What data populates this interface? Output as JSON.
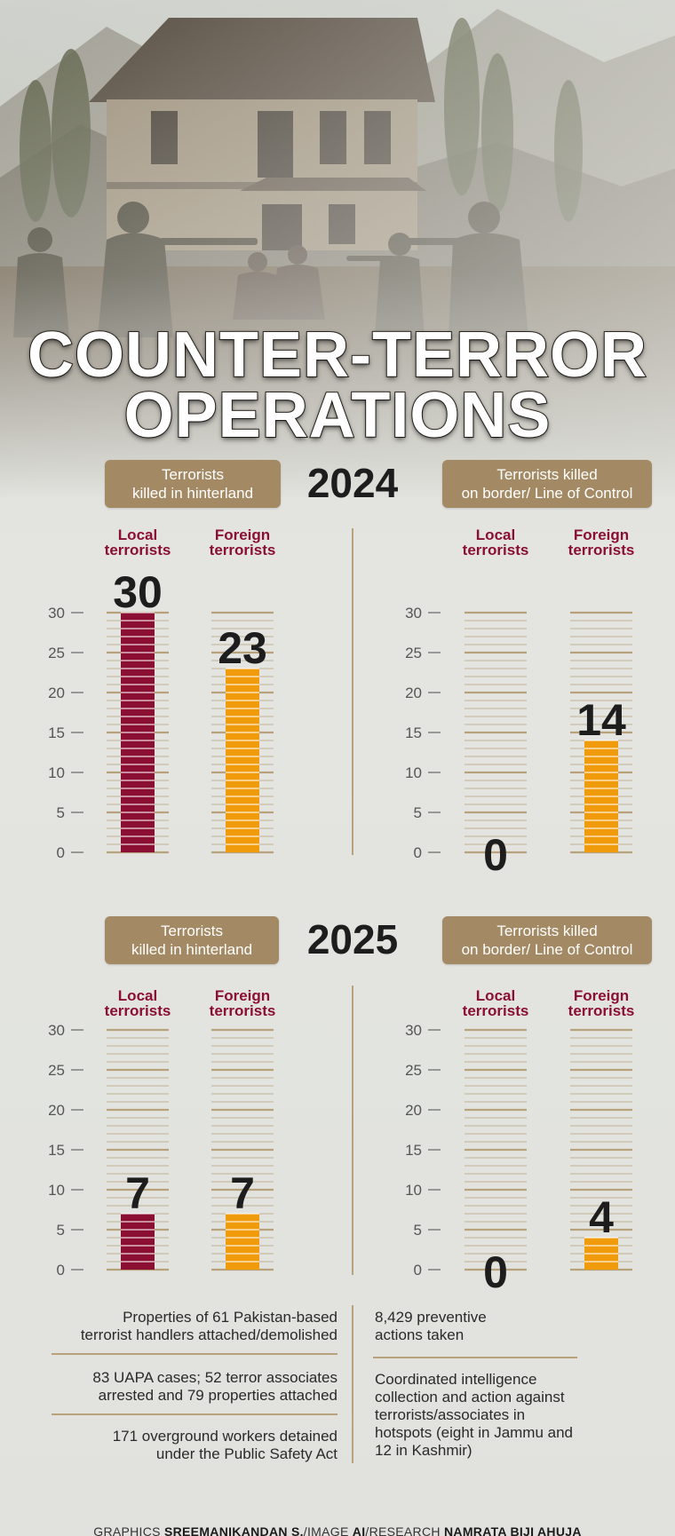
{
  "title": {
    "line1": "COUNTER-TERROR",
    "line2": "OPERATIONS"
  },
  "colors": {
    "local": "#8a0f33",
    "foreign": "#f09b0c",
    "accent": "#a48a64",
    "rule": "#b8a27c"
  },
  "panels": {
    "p2024": {
      "year": "2024",
      "hinterland_label": [
        "Terrorists",
        "killed in hinterland"
      ],
      "border_label": [
        "Terrorists killed",
        "on border/ Line of Control"
      ]
    },
    "p2025": {
      "year": "2025",
      "hinterland_label": [
        "Terrorists",
        "killed in hinterland"
      ],
      "border_label": [
        "Terrorists killed",
        "on border/ Line of Control"
      ]
    }
  },
  "chart_data": [
    {
      "type": "bar",
      "title": "2024 — Terrorists killed in hinterland",
      "categories": [
        "Local terrorists",
        "Foreign terrorists"
      ],
      "values": [
        30,
        23
      ],
      "yticks": [
        0,
        5,
        10,
        15,
        20,
        25,
        30
      ],
      "ylim": [
        0,
        30
      ]
    },
    {
      "type": "bar",
      "title": "2024 — Terrorists killed on border/ Line of Control",
      "categories": [
        "Local terrorists",
        "Foreign terrorists"
      ],
      "values": [
        0,
        14
      ],
      "yticks": [
        0,
        5,
        10,
        15,
        20,
        25,
        30
      ],
      "ylim": [
        0,
        30
      ]
    },
    {
      "type": "bar",
      "title": "2025 — Terrorists killed in hinterland",
      "categories": [
        "Local terrorists",
        "Foreign terrorists"
      ],
      "values": [
        7,
        7
      ],
      "yticks": [
        0,
        5,
        10,
        15,
        20,
        25,
        30
      ],
      "ylim": [
        0,
        30
      ]
    },
    {
      "type": "bar",
      "title": "2025 — Terrorists killed on border/ Line of Control",
      "categories": [
        "Local terrorists",
        "Foreign terrorists"
      ],
      "values": [
        0,
        4
      ],
      "yticks": [
        0,
        5,
        10,
        15,
        20,
        25,
        30
      ],
      "ylim": [
        0,
        30
      ]
    }
  ],
  "category_labels": {
    "local": [
      "Local",
      "terrorists"
    ],
    "foreign": [
      "Foreign",
      "terrorists"
    ]
  },
  "notes": {
    "left": [
      [
        "Properties of 61 Pakistan-based",
        "terrorist handlers attached/demolished"
      ],
      [
        "83 UAPA cases; 52 terror associates",
        "arrested and 79 properties attached"
      ],
      [
        "171 overground workers detained",
        "under the Public Safety Act"
      ]
    ],
    "right": [
      [
        "8,429 preventive",
        "actions taken"
      ],
      [
        "Coordinated intelligence",
        "collection and action against",
        "terrorists/associates in",
        "hotspots (eight in Jammu and",
        "12 in Kashmir)"
      ]
    ]
  },
  "credits": {
    "graphics_label": "GRAPHICS",
    "graphics_name": "SREEMANIKANDAN S.",
    "image_label": "/IMAGE",
    "image_name": "AI",
    "research_label": "/RESEARCH",
    "research_name": "NAMRATA BIJI AHUJA"
  }
}
